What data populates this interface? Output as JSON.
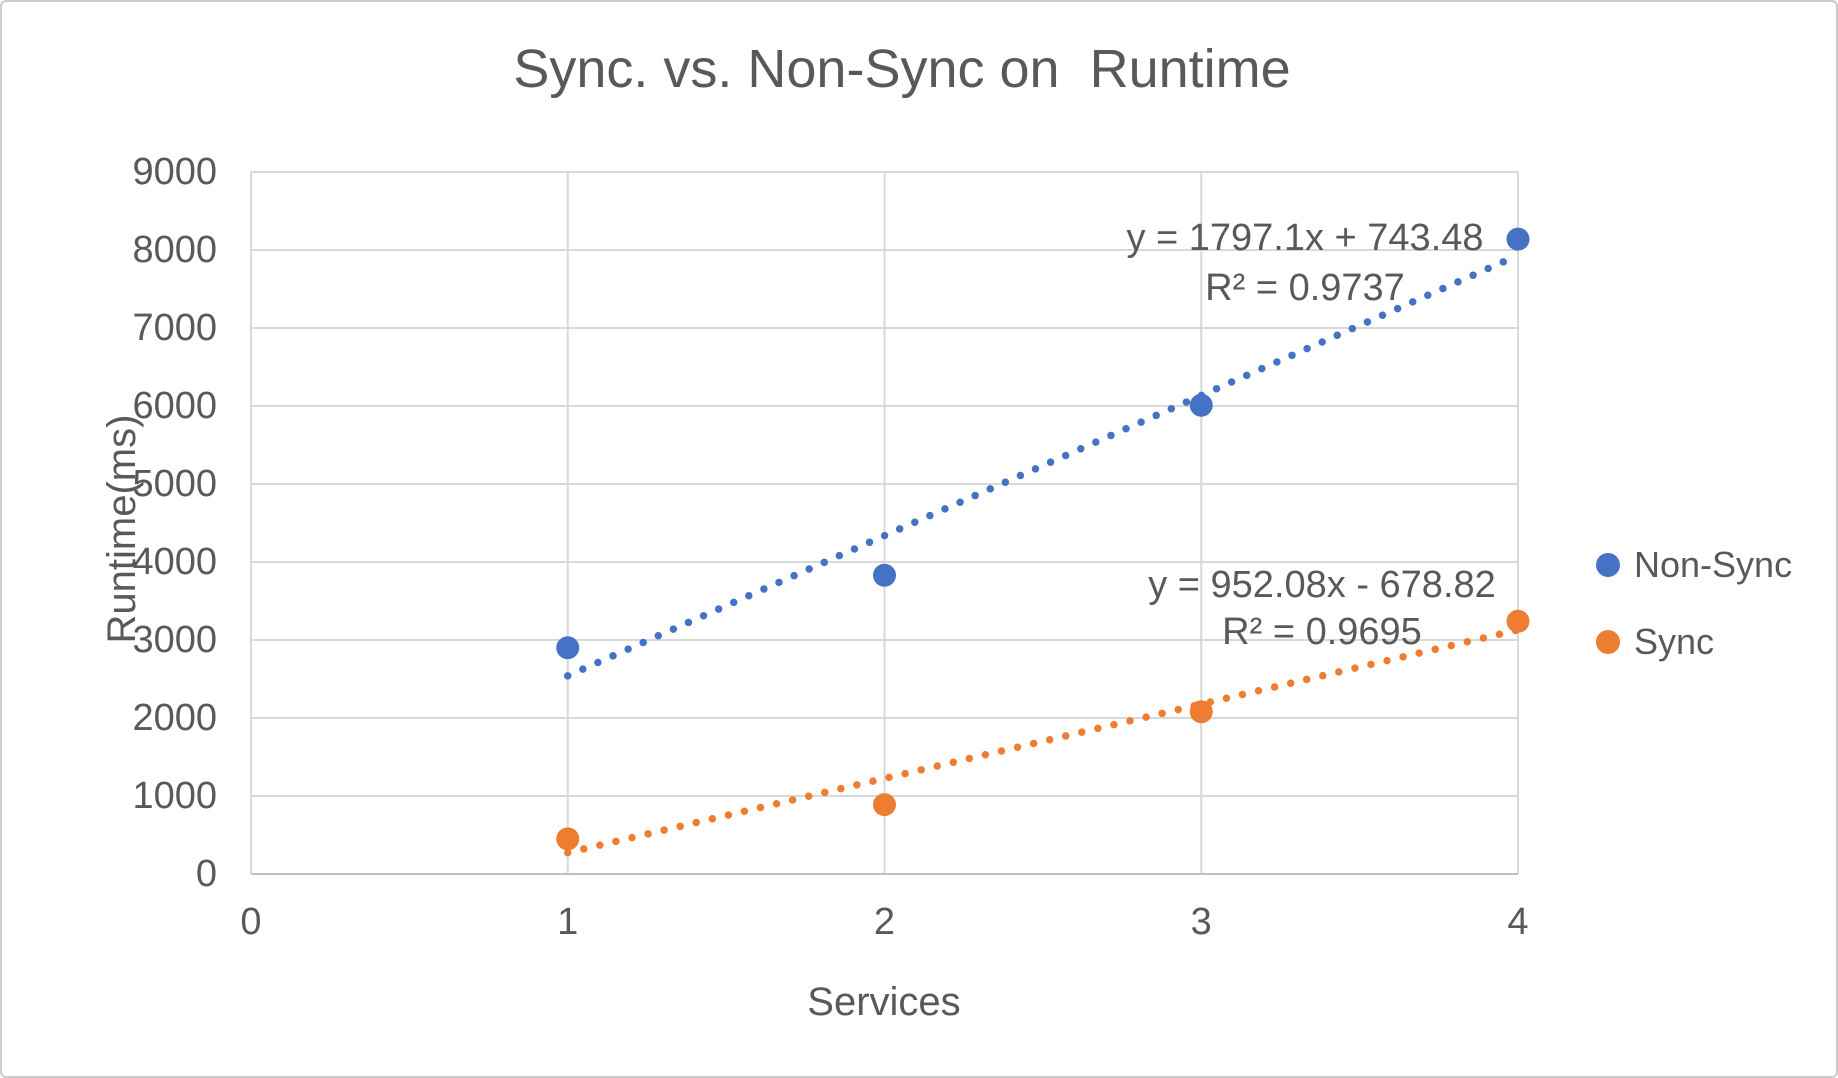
{
  "chart_data": {
    "type": "scatter",
    "title": "Sync. vs. Non-Sync on  Runtime",
    "xlabel": "Services",
    "ylabel": "Runtime(ms)",
    "xlim": [
      0,
      4
    ],
    "ylim": [
      0,
      9000
    ],
    "x_ticks": [
      0,
      1,
      2,
      3,
      4
    ],
    "y_ticks": [
      0,
      1000,
      2000,
      3000,
      4000,
      5000,
      6000,
      7000,
      8000,
      9000
    ],
    "grid": true,
    "legend_position": "right",
    "series": [
      {
        "name": "Non-Sync",
        "color": "#4472C4",
        "points": [
          [
            1,
            2900
          ],
          [
            2,
            3830
          ],
          [
            3,
            6010
          ],
          [
            4,
            8140
          ]
        ],
        "trendline": {
          "slope": 1797.1,
          "intercept": 743.48,
          "x_start": 1,
          "x_end": 4,
          "equation_label": "y = 1797.1x + 743.48",
          "r2_label": "R² = 0.9737"
        }
      },
      {
        "name": "Sync",
        "color": "#ED7D31",
        "points": [
          [
            1,
            450
          ],
          [
            2,
            890
          ],
          [
            3,
            2080
          ],
          [
            4,
            3240
          ]
        ],
        "trendline": {
          "slope": 952.08,
          "intercept": -678.82,
          "x_start": 1,
          "x_end": 4,
          "equation_label": "y = 952.08x - 678.82",
          "r2_label": "R² = 0.9695"
        }
      }
    ],
    "colors": {
      "grid": "#D9D9D9",
      "axis": "#BFBFBF",
      "text": "#595959"
    }
  }
}
